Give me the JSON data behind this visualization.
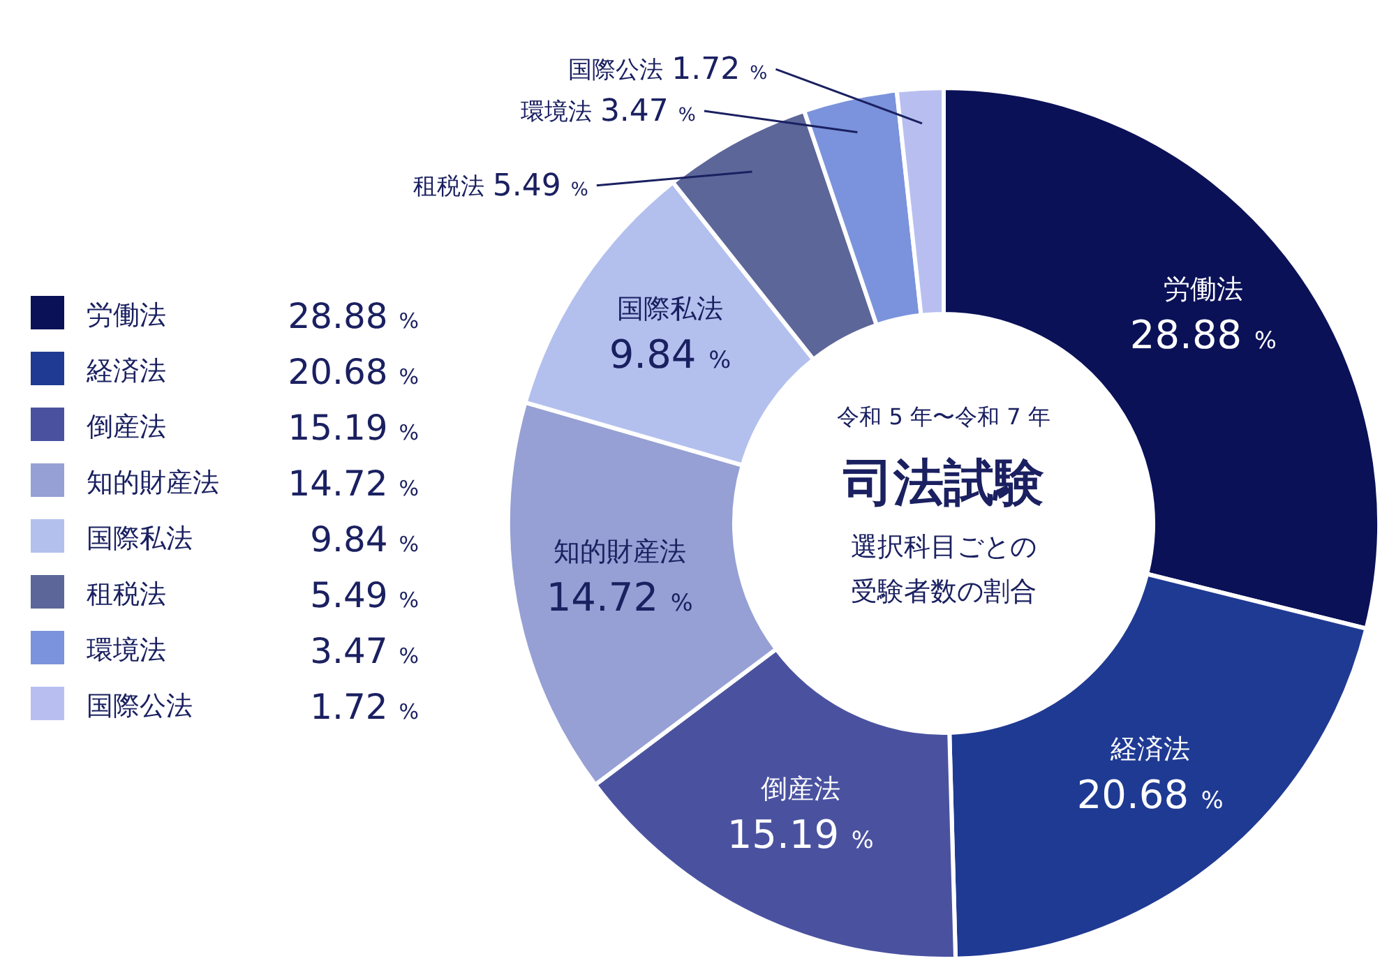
{
  "chart_data": {
    "type": "donut",
    "title": "司法試験",
    "subtitle": "令和 5 年〜令和 7 年",
    "annotations": [
      "選択科目ごとの",
      "受験者数の割合"
    ],
    "categories": [
      "労働法",
      "経済法",
      "倒産法",
      "知的財産法",
      "国際私法",
      "租税法",
      "環境法",
      "国際公法"
    ],
    "values": [
      28.88,
      20.68,
      15.19,
      14.72,
      9.84,
      5.49,
      3.47,
      1.72
    ],
    "colors": [
      "#0b1157",
      "#1f3a93",
      "#4a52a0",
      "#96a0d4",
      "#b3c0ee",
      "#5c6699",
      "#7b93dc",
      "#b8bff0"
    ],
    "value_labels": [
      "28.88 %",
      "20.68 %",
      "15.19 %",
      "14.72 %",
      "9.84 %",
      "5.49 %",
      "3.47 %",
      "1.72 %"
    ],
    "legend": "left"
  }
}
